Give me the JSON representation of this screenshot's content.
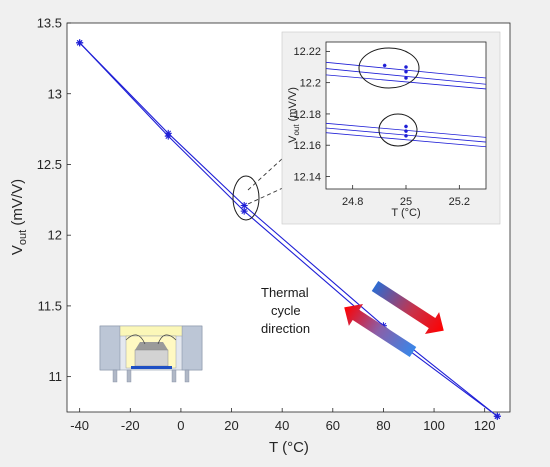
{
  "chart_data": [
    {
      "type": "line",
      "xlabel": "T (°C)",
      "ylabel": "V_out (mV/V)",
      "xlim": [
        -45,
        130
      ],
      "ylim": [
        10.75,
        13.5
      ],
      "xticks": [
        "-40",
        "-20",
        "0",
        "20",
        "40",
        "60",
        "80",
        "100",
        "120"
      ],
      "yticks": [
        "11",
        "11.5",
        "12",
        "12.5",
        "13",
        "13.5"
      ],
      "grid": false,
      "colors": {
        "line": "#1f1fd6",
        "axes_bg": "#ffffff",
        "figure_bg": "#f0f0f0"
      },
      "series": [
        {
          "x": [
            -40,
            -5,
            25,
            80,
            125
          ],
          "y": [
            13.36,
            12.72,
            12.21,
            11.36,
            10.72
          ]
        },
        {
          "x": [
            -40,
            -5,
            25,
            80,
            125
          ],
          "y": [
            13.36,
            12.7,
            12.17,
            11.32,
            10.72
          ]
        }
      ]
    },
    {
      "type": "line",
      "xlabel": "T (°C)",
      "ylabel": "V_out (mV/V)",
      "xlim": [
        24.7,
        25.3
      ],
      "ylim": [
        12.132,
        12.226
      ],
      "xticks": [
        "24.8",
        "25",
        "25.2"
      ],
      "yticks": [
        "12.14",
        "12.16",
        "12.18",
        "12.2",
        "12.22"
      ],
      "grid": false,
      "series": [
        {
          "x": [
            24.7,
            25.3
          ],
          "y": [
            12.213,
            12.203
          ]
        },
        {
          "x": [
            24.7,
            25.3
          ],
          "y": [
            12.209,
            12.199
          ]
        },
        {
          "x": [
            24.7,
            25.3
          ],
          "y": [
            12.205,
            12.196
          ]
        },
        {
          "x": [
            24.7,
            25.3
          ],
          "y": [
            12.174,
            12.165
          ]
        },
        {
          "x": [
            24.7,
            25.3
          ],
          "y": [
            12.171,
            12.162
          ]
        },
        {
          "x": [
            24.7,
            25.3
          ],
          "y": [
            12.168,
            12.159
          ]
        }
      ],
      "markers": [
        {
          "x": 24.92,
          "y": 12.211
        },
        {
          "x": 25.0,
          "y": 12.21
        },
        {
          "x": 25.0,
          "y": 12.207
        },
        {
          "x": 25.0,
          "y": 12.203
        },
        {
          "x": 25.0,
          "y": 12.172
        },
        {
          "x": 25.0,
          "y": 12.169
        },
        {
          "x": 25.0,
          "y": 12.166
        }
      ]
    }
  ],
  "annotations": {
    "thermal_cycle_label": [
      "Thermal",
      "cycle",
      "direction"
    ]
  }
}
